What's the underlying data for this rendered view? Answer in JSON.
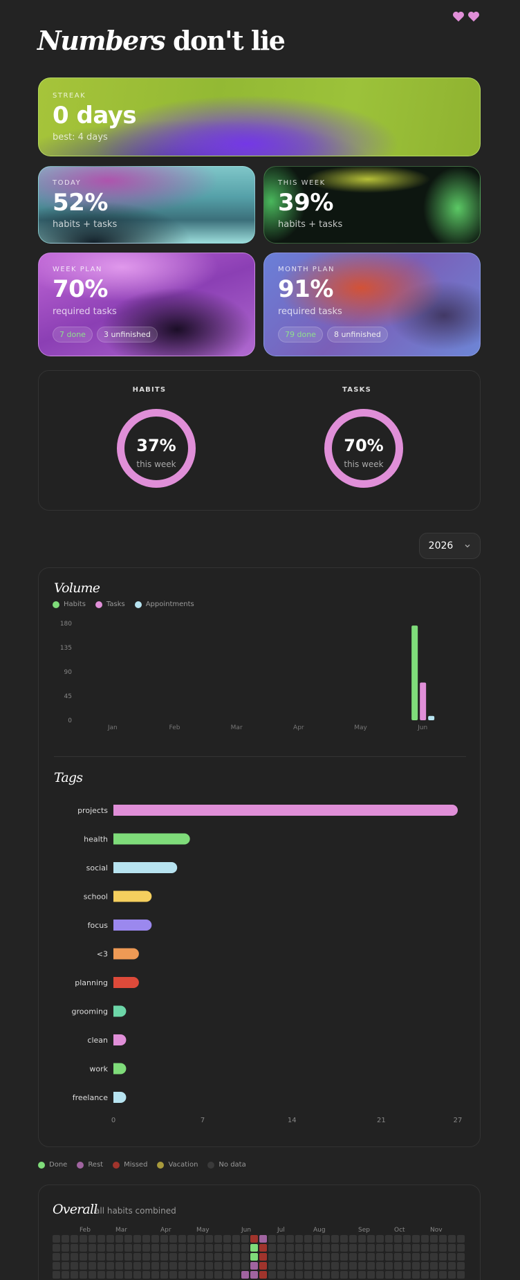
{
  "header": {
    "title_italic": "Numbers",
    "title_rest": " don't lie",
    "hearts": [
      "heart-icon",
      "heart-icon"
    ],
    "heart_color": "#e08fd8"
  },
  "cards": {
    "streak": {
      "label": "STREAK",
      "value": "0 days",
      "sub": "best: 4 days"
    },
    "today": {
      "label": "TODAY",
      "value": "52%",
      "sub": "habits + tasks"
    },
    "this_week": {
      "label": "THIS WEEK",
      "value": "39%",
      "sub": "habits + tasks"
    },
    "week_plan": {
      "label": "WEEK PLAN",
      "value": "70%",
      "sub": "required tasks",
      "done": "7 done",
      "unfinished": "3 unfinished"
    },
    "month_plan": {
      "label": "MONTH PLAN",
      "value": "91%",
      "sub": "required tasks",
      "done": "79 done",
      "unfinished": "8 unfinished"
    }
  },
  "progress": {
    "habits": {
      "label": "HABITS",
      "value": "37%",
      "caption": "this week"
    },
    "tasks": {
      "label": "TASKS",
      "value": "70%",
      "caption": "this week"
    }
  },
  "year_select": {
    "value": "2026"
  },
  "volume": {
    "title": "Volume",
    "legend": [
      {
        "name": "Habits",
        "color": "#7fdc7a"
      },
      {
        "name": "Tasks",
        "color": "#e08fd8"
      },
      {
        "name": "Appointments",
        "color": "#b7e3f0"
      }
    ]
  },
  "tags": {
    "title": "Tags"
  },
  "chart_data": [
    {
      "type": "bar",
      "title": "Volume",
      "categories": [
        "Jan",
        "Feb",
        "Mar",
        "Apr",
        "May",
        "Jun"
      ],
      "series": [
        {
          "name": "Habits",
          "color": "#7fdc7a",
          "values": [
            0,
            0,
            0,
            0,
            0,
            176
          ]
        },
        {
          "name": "Tasks",
          "color": "#e08fd8",
          "values": [
            0,
            0,
            0,
            0,
            0,
            70
          ]
        },
        {
          "name": "Appointments",
          "color": "#b7e3f0",
          "values": [
            0,
            0,
            0,
            0,
            0,
            8
          ]
        }
      ],
      "yticks": [
        0,
        45,
        90,
        135,
        180
      ],
      "ylim": [
        0,
        180
      ],
      "grid": false,
      "legend": "top-left"
    },
    {
      "type": "bar",
      "orientation": "horizontal",
      "title": "Tags",
      "categories": [
        "projects",
        "health",
        "social",
        "school",
        "focus",
        "<3",
        "planning",
        "grooming",
        "clean",
        "work",
        "freelance"
      ],
      "values": [
        27,
        6,
        5,
        3,
        3,
        2,
        2,
        1,
        1,
        1,
        1
      ],
      "colors": [
        "#e08fd8",
        "#7fdc7a",
        "#b7e3f0",
        "#f5cf5e",
        "#9b88ee",
        "#ee9a55",
        "#dd4a3a",
        "#6dd6a8",
        "#e08fd8",
        "#7fdc7a",
        "#b7e3f0"
      ],
      "xticks": [
        0,
        7,
        14,
        21,
        27
      ],
      "xlim": [
        0,
        27
      ]
    }
  ],
  "status_legend": [
    {
      "name": "Done",
      "color": "#7fdc7a"
    },
    {
      "name": "Rest",
      "color": "#a064a0"
    },
    {
      "name": "Missed",
      "color": "#a0342c"
    },
    {
      "name": "Vacation",
      "color": "#a89a3c"
    },
    {
      "name": "No data",
      "color": "#3a3a3a"
    }
  ],
  "overall": {
    "title": "Overall",
    "subtitle": "all habits combined",
    "months": [
      "Feb",
      "Mar",
      "Apr",
      "May",
      "Jun",
      "Jul",
      "Aug",
      "Sep",
      "Oct",
      "Nov"
    ],
    "marked_cells": [
      {
        "col": 22,
        "row": 0,
        "status": "Missed"
      },
      {
        "col": 23,
        "row": 0,
        "status": "Rest"
      },
      {
        "col": 22,
        "row": 1,
        "status": "Done"
      },
      {
        "col": 23,
        "row": 1,
        "status": "Missed"
      },
      {
        "col": 22,
        "row": 2,
        "status": "Done"
      },
      {
        "col": 23,
        "row": 2,
        "status": "Missed"
      },
      {
        "col": 22,
        "row": 3,
        "status": "Rest"
      },
      {
        "col": 23,
        "row": 3,
        "status": "Missed"
      },
      {
        "col": 21,
        "row": 4,
        "status": "Rest"
      },
      {
        "col": 22,
        "row": 4,
        "status": "Rest"
      },
      {
        "col": 23,
        "row": 4,
        "status": "Missed"
      }
    ]
  }
}
